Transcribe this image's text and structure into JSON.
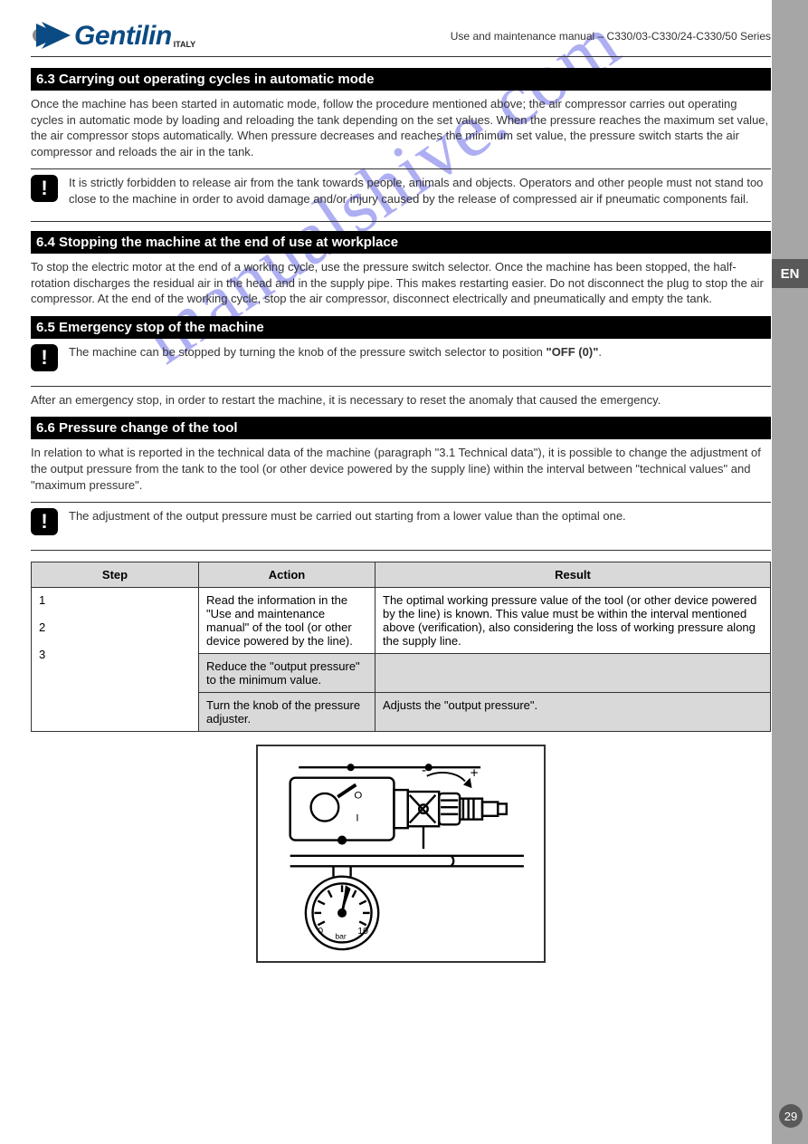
{
  "page": {
    "brand": "Gentilin",
    "brand_sub": "ITALY",
    "header_title": "Use and maintenance manual – C330/03-C330/24-C330/50 Series",
    "lang_tab": "EN",
    "page_number": "29",
    "watermark": "manualshive.com"
  },
  "sections": {
    "s1": {
      "title": "6.3 Carrying out operating cycles in automatic mode",
      "body": "Once the machine has been started in automatic mode, follow the procedure mentioned above; the air compressor carries out operating cycles in automatic mode by loading and reloading the tank depending on the set values. When the pressure reaches the maximum set value, the air compressor stops automatically. When pressure decreases and reaches the minimum set value, the pressure switch starts the air compressor and reloads the air in the tank.",
      "warn": "It is strictly forbidden to release air from the tank towards people, animals and objects. Operators and other people must not stand too close to the machine in order to avoid damage and/or injury caused by the release of compressed air if pneumatic components fail."
    },
    "s2": {
      "title": "6.4 Stopping the machine at the end of use at workplace",
      "body": "To stop the electric motor at the end of a working cycle, use the pressure switch selector. Once the machine has been stopped, the half-rotation discharges the residual air in the head and in the supply pipe. This makes restarting easier. Do not disconnect the plug to stop the air compressor. At the end of the working cycle, stop the air compressor, disconnect electrically and pneumatically and empty the tank."
    },
    "s3": {
      "title": "6.5 Emergency stop of the machine",
      "warn_html": "The machine can be stopped by turning the knob of the pressure switch selector to position <strong>\"OFF (0)\"</strong>.",
      "body2": "After an emergency stop, in order to restart the machine, it is necessary to reset the anomaly that caused the emergency."
    },
    "s4": {
      "title": "6.6 Pressure change of the tool",
      "body": "In relation to what is reported in the technical data of the machine (paragraph \"3.1 Technical data\"), it is possible to change the adjustment of the output pressure from the tank to the tool (or other device powered by the supply line) within the interval between \"technical values\" and \"maximum pressure\".",
      "warn": "The adjustment of the output pressure must be carried out starting from a lower value than the optimal one."
    },
    "table": {
      "headers": [
        "Step",
        "Action",
        "Result"
      ],
      "rows": [
        [
          "1",
          "Read the information in the \"Use and maintenance manual\" of the tool (or other device powered by the line).",
          "The optimal working pressure value of the tool (or other device powered by the line) is known. This value must be within the interval mentioned above (verification), also considering the loss of working pressure along the supply line."
        ],
        [
          "2",
          "Reduce the \"output pressure\" to the minimum value.",
          ""
        ],
        [
          "3",
          "Turn the knob of the pressure adjuster.",
          "Adjusts the \"output pressure\"."
        ]
      ]
    }
  },
  "colors": {
    "brand": "#0b4b84",
    "sidebar": "#a6a6a6",
    "tab": "#595959",
    "watermark": "#6c6ce8",
    "table_header_bg": "#d9d9d9"
  }
}
